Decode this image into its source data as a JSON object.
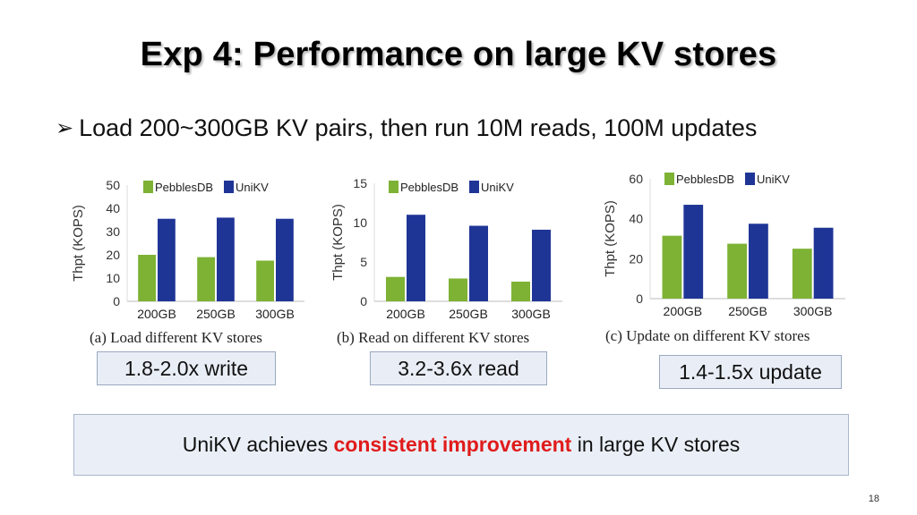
{
  "title": "Exp 4: Performance on large KV stores",
  "bullet": {
    "marker": "➢",
    "text": "Load 200~300GB KV pairs, then run 10M reads, 100M updates"
  },
  "colors": {
    "pebblesdb": "#7db234",
    "unikv": "#1f3596",
    "highlight": "#e01b1b"
  },
  "chart_data": [
    {
      "type": "bar",
      "caption": "(a)  Load different KV stores",
      "categories": [
        "200GB",
        "250GB",
        "300GB"
      ],
      "ylabel": "Thpt (KOPS)",
      "ylim": [
        0,
        50
      ],
      "yticks": [
        "0",
        "10",
        "20",
        "30",
        "40",
        "50"
      ],
      "legend": "top",
      "series": [
        {
          "name": "PebblesDB",
          "values": [
            20,
            19,
            17.5
          ]
        },
        {
          "name": "UniKV",
          "values": [
            35.5,
            36,
            35.5
          ]
        }
      ]
    },
    {
      "type": "bar",
      "caption": "(b)  Read on different KV stores",
      "categories": [
        "200GB",
        "250GB",
        "300GB"
      ],
      "ylabel": "Thpt (KOPS)",
      "ylim": [
        0,
        15
      ],
      "yticks": [
        "0",
        "5",
        "10",
        "15"
      ],
      "legend": "top",
      "series": [
        {
          "name": "PebblesDB",
          "values": [
            3.1,
            2.9,
            2.5
          ]
        },
        {
          "name": "UniKV",
          "values": [
            11,
            9.6,
            9.1
          ]
        }
      ]
    },
    {
      "type": "bar",
      "caption": "(c)  Update on different KV stores",
      "categories": [
        "200GB",
        "250GB",
        "300GB"
      ],
      "ylabel": "Thpt (KOPS)",
      "ylim": [
        0,
        60
      ],
      "yticks": [
        "0",
        "20",
        "40",
        "60"
      ],
      "legend": "top",
      "series": [
        {
          "name": "PebblesDB",
          "values": [
            31.5,
            27.5,
            25
          ]
        },
        {
          "name": "UniKV",
          "values": [
            47,
            37.5,
            35.5
          ]
        }
      ]
    }
  ],
  "callouts": {
    "write": "1.8-2.0x write",
    "read": "3.2-3.6x read",
    "update": "1.4-1.5x update"
  },
  "conclusion": {
    "before": "UniKV achieves ",
    "highlight": "consistent improvement",
    "after": " in large KV stores"
  },
  "page_number": "18"
}
